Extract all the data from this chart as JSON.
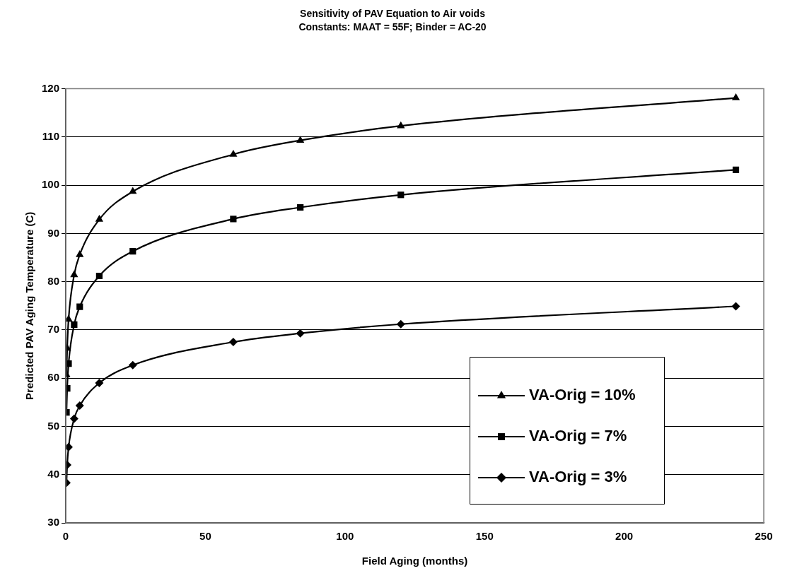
{
  "chart_data": {
    "type": "line",
    "title": "Sensitivity of PAV Equation to Air voids",
    "subtitle": "Constants: MAAT = 55F; Binder = AC-20",
    "xlabel": "Field Aging (months)",
    "ylabel": "Predicted PAV Aging Temperature (C)",
    "x": [
      0.25,
      0.5,
      1,
      3,
      5,
      12,
      24,
      60,
      84,
      120,
      240
    ],
    "series": [
      {
        "name": "VA-Orig = 10%",
        "color": "#000000",
        "marker": "triangle",
        "values": [
          60.7,
          66.2,
          72.2,
          81.4,
          85.6,
          92.9,
          98.7,
          106.4,
          109.3,
          112.3,
          118.1
        ]
      },
      {
        "name": "VA-Orig = 7%",
        "color": "#000000",
        "marker": "square",
        "values": [
          52.9,
          57.9,
          63.0,
          71.1,
          74.8,
          81.2,
          86.3,
          93.0,
          95.4,
          98.0,
          103.2
        ]
      },
      {
        "name": "VA-Orig = 3%",
        "color": "#000000",
        "marker": "diamond",
        "values": [
          38.3,
          42.0,
          45.7,
          51.6,
          54.3,
          59.0,
          62.7,
          67.5,
          69.3,
          71.2,
          74.9
        ]
      }
    ],
    "xlim": [
      0,
      250
    ],
    "xticks": [
      0,
      50,
      100,
      150,
      200,
      250
    ],
    "ylim": [
      30,
      120
    ],
    "yticks": [
      30,
      40,
      50,
      60,
      70,
      80,
      90,
      100,
      110,
      120
    ],
    "grid": "y",
    "legend": "bottom right",
    "line_style": "solid"
  }
}
